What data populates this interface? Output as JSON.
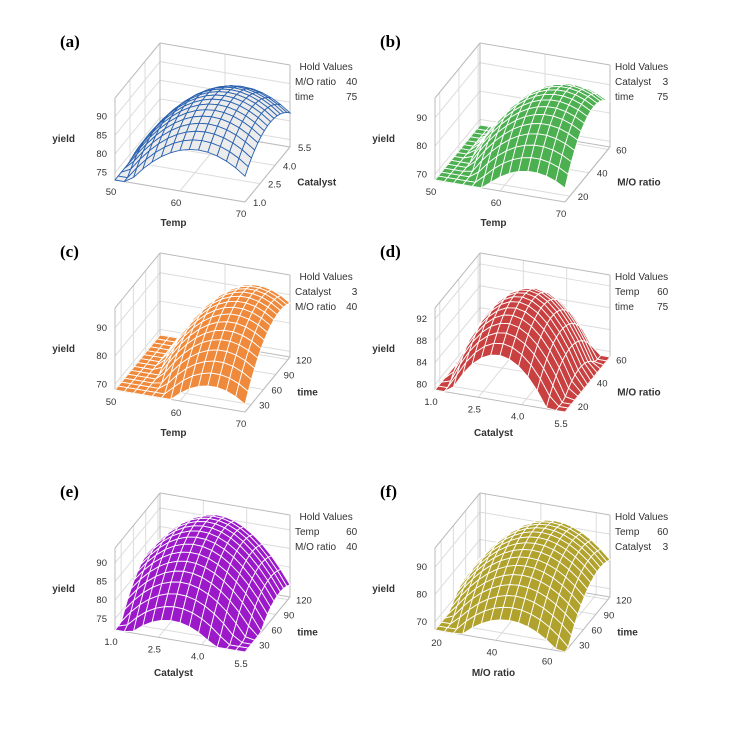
{
  "chart_data": [
    {
      "panel": "(a)",
      "type": "surface",
      "xlabel": "Temp",
      "ylabel": "Catalyst",
      "zlabel": "yield",
      "xlim": [
        50,
        70
      ],
      "ylim": [
        1,
        5.5
      ],
      "zlim": [
        73,
        95
      ],
      "xticks": [
        50,
        60,
        70
      ],
      "yticks": [
        1.0,
        2.5,
        4.0,
        5.5
      ],
      "zticks": [
        75,
        80,
        85,
        90
      ],
      "hold_title": "Hold Values",
      "hold": [
        [
          "M/O ratio",
          "40"
        ],
        [
          "time",
          "75"
        ]
      ],
      "fill": "#ececec",
      "stroke": "#2a62b0",
      "surface": {
        "max": 91,
        "x0": 63,
        "cx": 40,
        "y0": 3.5,
        "cy": 20
      }
    },
    {
      "panel": "(b)",
      "type": "surface",
      "xlabel": "Temp",
      "ylabel": "M/O ratio",
      "zlabel": "yield",
      "xlim": [
        50,
        70
      ],
      "ylim": [
        15,
        62
      ],
      "zlim": [
        68,
        97
      ],
      "xticks": [
        50,
        60,
        70
      ],
      "yticks": [
        20,
        40,
        60
      ],
      "zticks": [
        70,
        80,
        90
      ],
      "hold_title": "Hold Values",
      "hold": [
        [
          "Catalyst",
          "3"
        ],
        [
          "time",
          "75"
        ]
      ],
      "fill": "#4caf50",
      "stroke": "#ffffff",
      "surface": {
        "max": 93,
        "x0": 65,
        "cx": 60,
        "y0": 45,
        "cy": 40
      }
    },
    {
      "panel": "(c)",
      "type": "surface",
      "xlabel": "Temp",
      "ylabel": "time",
      "zlabel": "yield",
      "xlim": [
        50,
        70
      ],
      "ylim": [
        15,
        125
      ],
      "zlim": [
        68,
        97
      ],
      "xticks": [
        50,
        60,
        70
      ],
      "yticks": [
        30,
        60,
        90,
        120
      ],
      "zticks": [
        70,
        80,
        90
      ],
      "hold_title": "Hold Values",
      "hold": [
        [
          "Catalyst",
          "3"
        ],
        [
          "M/O ratio",
          "40"
        ]
      ],
      "fill": "#ef8a3c",
      "stroke": "#ffffff",
      "surface": {
        "max": 93,
        "x0": 65,
        "cx": 70,
        "y0": 100,
        "cy": 30
      }
    },
    {
      "panel": "(d)",
      "type": "surface",
      "xlabel": "Catalyst",
      "ylabel": "M/O ratio",
      "zlabel": "yield",
      "xlim": [
        1,
        5.5
      ],
      "ylim": [
        15,
        62
      ],
      "zlim": [
        79,
        94
      ],
      "xticks": [
        1.0,
        2.5,
        4.0,
        5.5
      ],
      "yticks": [
        20,
        40,
        60
      ],
      "zticks": [
        80,
        84,
        88,
        92
      ],
      "hold_title": "Hold Values",
      "hold": [
        [
          "Temp",
          "60"
        ],
        [
          "time",
          "75"
        ]
      ],
      "fill": "#c94040",
      "stroke": "#ffffff",
      "surface": {
        "max": 93,
        "x0": 3.2,
        "cx": 60,
        "y0": 40,
        "cy": 20
      }
    },
    {
      "panel": "(e)",
      "type": "surface",
      "xlabel": "Catalyst",
      "ylabel": "time",
      "zlabel": "yield",
      "xlim": [
        1,
        5.5
      ],
      "ylim": [
        15,
        125
      ],
      "zlim": [
        72,
        94
      ],
      "xticks": [
        1.0,
        2.5,
        4.0,
        5.5
      ],
      "yticks": [
        30,
        60,
        90,
        120
      ],
      "zticks": [
        75,
        80,
        85,
        90
      ],
      "hold_title": "Hold Values",
      "hold": [
        [
          "Temp",
          "60"
        ],
        [
          "M/O ratio",
          "40"
        ]
      ],
      "fill": "#9b19c8",
      "stroke": "#ffffff",
      "surface": {
        "max": 92,
        "x0": 3,
        "cx": 50,
        "y0": 100,
        "cy": 25
      }
    },
    {
      "panel": "(f)",
      "type": "surface",
      "xlabel": "M/O ratio",
      "ylabel": "time",
      "zlabel": "yield",
      "xlim": [
        18,
        65
      ],
      "ylim": [
        15,
        125
      ],
      "zlim": [
        67,
        97
      ],
      "xticks": [
        20,
        40,
        60
      ],
      "yticks": [
        30,
        60,
        90,
        120
      ],
      "zticks": [
        70,
        80,
        90
      ],
      "hold_title": "Hold Values",
      "hold": [
        [
          "Temp",
          "60"
        ],
        [
          "Catalyst",
          "3"
        ]
      ],
      "fill": "#b0a22c",
      "stroke": "#ffffff",
      "surface": {
        "max": 93,
        "x0": 45,
        "cx": 60,
        "y0": 100,
        "cy": 30
      }
    }
  ]
}
